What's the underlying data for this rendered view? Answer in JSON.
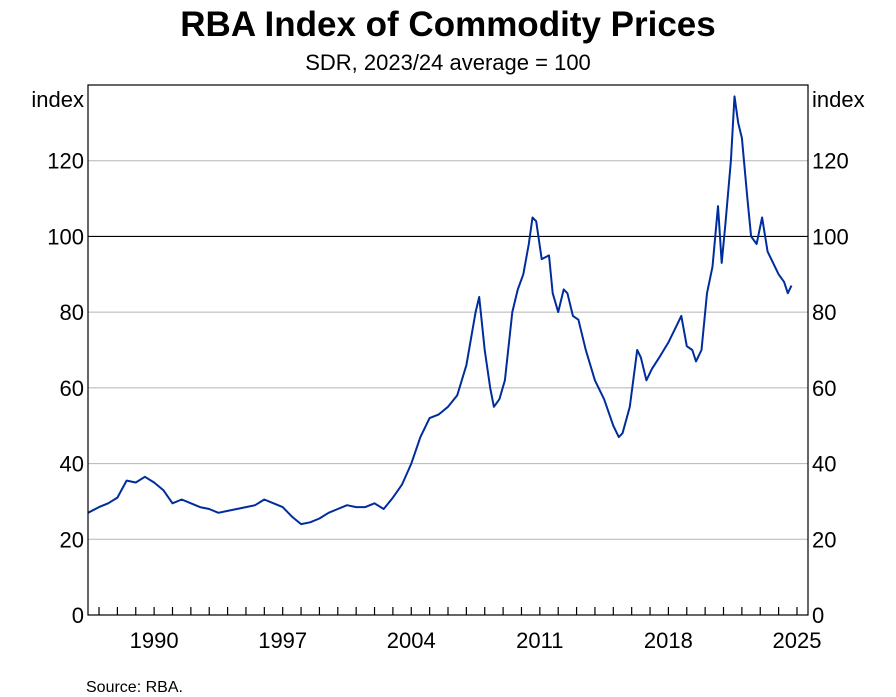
{
  "chart_data": {
    "type": "line",
    "title": "RBA Index of Commodity Prices",
    "subtitle": "SDR, 2023/24 average = 100",
    "ylabel_left": "index",
    "ylabel_right": "index",
    "ylim": [
      0,
      140
    ],
    "yticks": [
      0,
      20,
      40,
      60,
      80,
      100,
      120
    ],
    "xlim": [
      1986.9,
      2026.1
    ],
    "xtick_labels": [
      "1990",
      "1997",
      "2004",
      "2011",
      "2018",
      "2025"
    ],
    "xtick_values": [
      1990,
      1997,
      2004,
      2011,
      2018,
      2025
    ],
    "reference_line": 100,
    "grid": true,
    "line_color": "#002d9c",
    "source": "Source:   RBA.",
    "series": [
      {
        "x": [
          1986.9,
          1987.5,
          1988.0,
          1988.5,
          1989.0,
          1989.5,
          1990.0,
          1990.5,
          1991.0,
          1991.5,
          1992.0,
          1992.5,
          1993.0,
          1993.5,
          1994.0,
          1994.5,
          1995.0,
          1995.5,
          1996.0,
          1996.5,
          1997.0,
          1997.5,
          1998.0,
          1998.5,
          1999.0,
          1999.5,
          2000.0,
          2000.5,
          2001.0,
          2001.5,
          2002.0,
          2002.5,
          2003.0,
          2003.5,
          2004.0,
          2004.5,
          2005.0,
          2005.5,
          2006.0,
          2006.5,
          2007.0,
          2007.5,
          2008.0,
          2008.2,
          2008.5,
          2008.8,
          2009.0,
          2009.3,
          2009.6,
          2010.0,
          2010.3,
          2010.6,
          2010.9,
          2011.1,
          2011.3,
          2011.6,
          2012.0,
          2012.2,
          2012.5,
          2012.8,
          2013.0,
          2013.3,
          2013.6,
          2014.0,
          2014.5,
          2015.0,
          2015.5,
          2015.8,
          2016.0,
          2016.4,
          2016.8,
          2017.0,
          2017.3,
          2017.6,
          2018.0,
          2018.5,
          2018.9,
          2019.2,
          2019.5,
          2019.8,
          2020.0,
          2020.3,
          2020.6,
          2020.9,
          2021.2,
          2021.4,
          2021.6,
          2021.9,
          2022.1,
          2022.3,
          2022.5,
          2022.8,
          2023.0,
          2023.3,
          2023.6,
          2023.9,
          2024.2,
          2024.5,
          2024.8,
          2025.0,
          2025.2
        ],
        "y": [
          27,
          28.5,
          29.5,
          31,
          35.5,
          35,
          36.5,
          35,
          33,
          29.5,
          30.5,
          29.5,
          28.5,
          28,
          27,
          27.5,
          28,
          28.5,
          29,
          30.5,
          29.5,
          28.5,
          26,
          24,
          24.5,
          25.5,
          27,
          28,
          29,
          28.5,
          28.5,
          29.5,
          28,
          31,
          34.5,
          40,
          47,
          52,
          53,
          55,
          58,
          66,
          80,
          84,
          70,
          60,
          55,
          57,
          62,
          80,
          86,
          90,
          98,
          105,
          104,
          94,
          95,
          85,
          80,
          86,
          85,
          79,
          78,
          70,
          62,
          57,
          50,
          47,
          48,
          55,
          70,
          68,
          62,
          65,
          68,
          72,
          76,
          79,
          71,
          70,
          67,
          70,
          85,
          92,
          108,
          93,
          103,
          120,
          137,
          130,
          126,
          110,
          100,
          98,
          105,
          96,
          93,
          90,
          88,
          85,
          87
        ]
      }
    ]
  }
}
